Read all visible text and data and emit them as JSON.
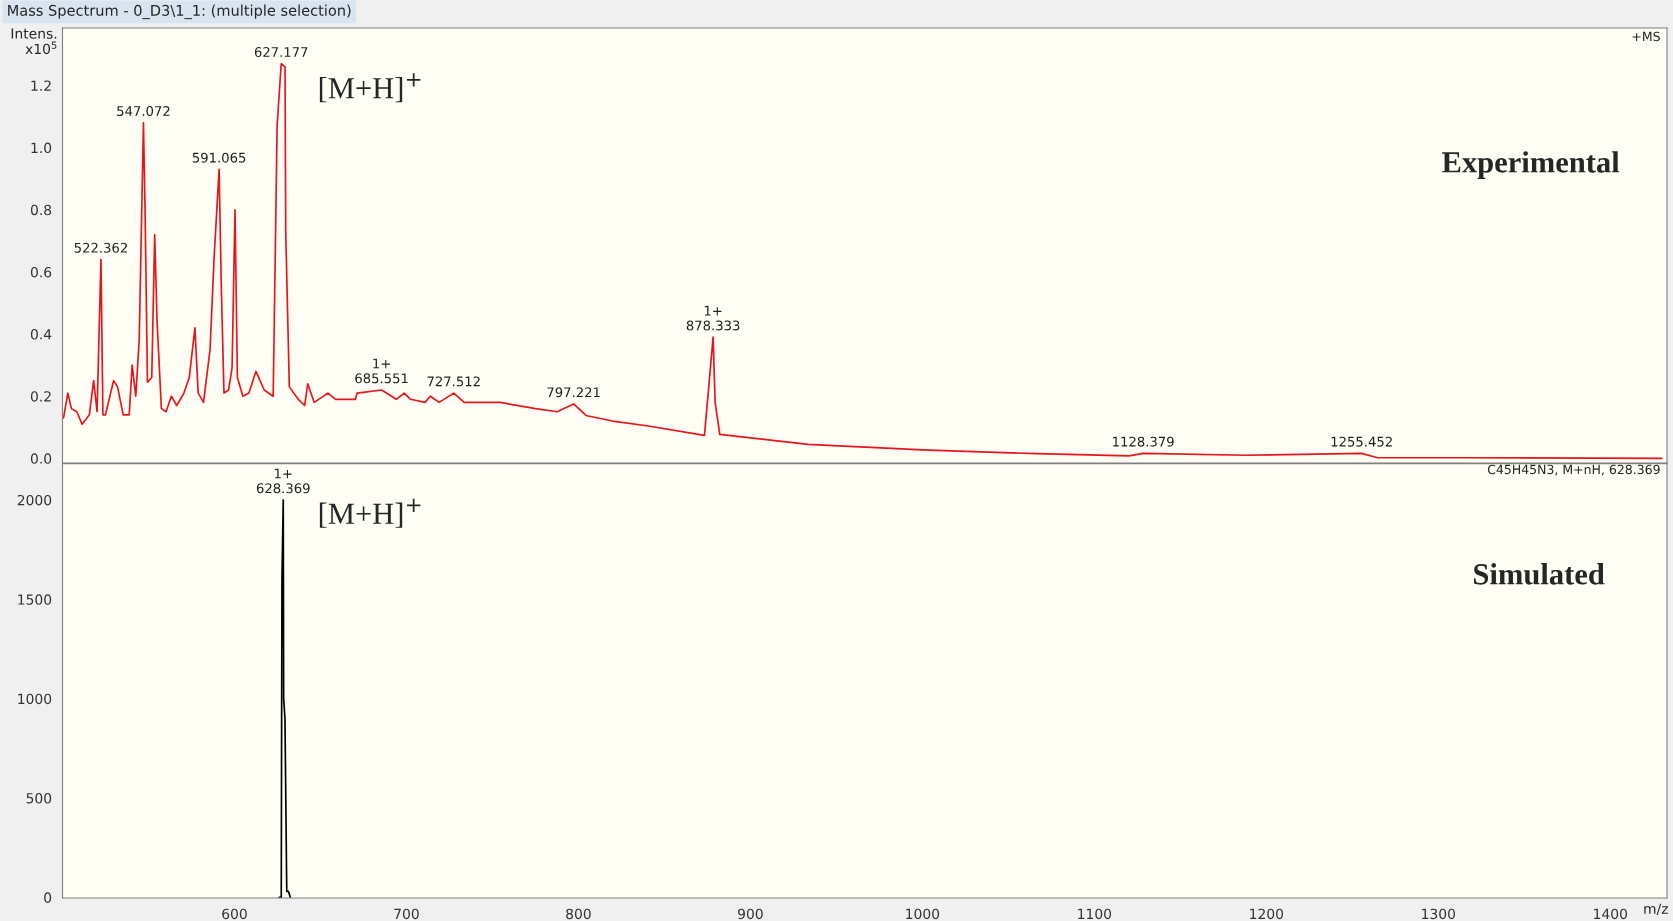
{
  "chart_data": [
    {
      "type": "line",
      "title": "Mass Spectrum - 0_D3\\1_1: (multiple selection)",
      "ylabel": "Intens.\nx10$^{5}$",
      "x": [
        500.6,
        503.1,
        505.2,
        508.3,
        511.4,
        515.6,
        518.1,
        520.1,
        522.362,
        523.5,
        525,
        529.7,
        532,
        535.3,
        538.8,
        540.5,
        542.6,
        544.6,
        547.072,
        548,
        549.4,
        551.9,
        553.6,
        555,
        557.5,
        560.2,
        563.3,
        566.4,
        570.6,
        573.7,
        577,
        578.9,
        582,
        585.8,
        588.2,
        591.065,
        592.4,
        593.9,
        596.6,
        598.6,
        600.3,
        601.7,
        604.9,
        608.4,
        612.5,
        617.3,
        622.5,
        624.8,
        627.177,
        629.4,
        629.8,
        631.9,
        637.1,
        640.8,
        642.6,
        646.4,
        654.3,
        658.8,
        670.3,
        671.3,
        685.551,
        694.1,
        698.7,
        702.4,
        710.8,
        713.9,
        719,
        727.512,
        733.6,
        754.4,
        775.1,
        787.6,
        797.221,
        804.4,
        819.9,
        839.8,
        873.3,
        878.333,
        879.5,
        882.2,
        933.4,
        1000,
        1066.8,
        1120.2,
        1128.379,
        1188,
        1255.452,
        1264.7,
        1315.5,
        1430
      ],
      "series": [
        {
          "color": "#e8141c",
          "values": [
            0.13,
            0.21,
            0.16,
            0.15,
            0.11,
            0.14,
            0.25,
            0.15,
            0.64,
            0.14,
            0.14,
            0.25,
            0.23,
            0.14,
            0.14,
            0.3,
            0.2,
            0.38,
            1.08,
            0.8,
            0.245,
            0.26,
            0.72,
            0.44,
            0.16,
            0.15,
            0.2,
            0.17,
            0.21,
            0.26,
            0.42,
            0.21,
            0.18,
            0.35,
            0.65,
            0.93,
            0.54,
            0.21,
            0.22,
            0.29,
            0.8,
            0.26,
            0.2,
            0.21,
            0.28,
            0.22,
            0.2,
            1.07,
            1.27,
            1.26,
            0.73,
            0.23,
            0.19,
            0.17,
            0.24,
            0.18,
            0.21,
            0.19,
            0.19,
            0.21,
            0.22,
            0.19,
            0.21,
            0.19,
            0.18,
            0.2,
            0.18,
            0.21,
            0.18,
            0.18,
            0.16,
            0.15,
            0.175,
            0.138,
            0.12,
            0.105,
            0.074,
            0.39,
            0.18,
            0.077,
            0.045,
            0.027,
            0.015,
            0.008,
            0.016,
            0.01,
            0.016,
            0.002,
            0.002,
            0.0
          ]
        }
      ],
      "xlim": [
        500,
        1433
      ],
      "xticks": [
        600,
        700,
        800,
        900,
        1000,
        1100,
        1200,
        1300,
        1400
      ],
      "ylim": [
        -0.015,
        1.385
      ],
      "yticks": [
        {
          "value": 0,
          "label": "0.0"
        },
        {
          "value": 0.2,
          "label": "0.2"
        },
        {
          "value": 0.4,
          "label": "0.4"
        },
        {
          "value": 0.6,
          "label": "0.6"
        },
        {
          "value": 0.8,
          "label": "0.8"
        },
        {
          "value": 1.0,
          "label": "1.0"
        },
        {
          "value": 1.2,
          "label": "1.2"
        }
      ],
      "tick_labels": "y",
      "annotations": [
        "+MS",
        "Experimental",
        "[M+H]$^{+}$",
        {
          "text": "522.362",
          "x": 522.362,
          "y": 0.64
        },
        {
          "text": "547.072",
          "x": 547.072,
          "y": 1.08
        },
        {
          "text": "591.065",
          "x": 591.065,
          "y": 0.93
        },
        {
          "text": "627.177",
          "x": 627.177,
          "y": 1.27
        },
        {
          "text": "1+\n685.551",
          "x": 685.551,
          "y": 0.22
        },
        {
          "text": "727.512",
          "x": 727.512,
          "y": 0.21
        },
        {
          "text": "797.221",
          "x": 797.221,
          "y": 0.175
        },
        {
          "text": "1+\n878.333",
          "x": 878.333,
          "y": 0.39
        },
        {
          "text": "1128.379",
          "x": 1128.379,
          "y": 0.016
        },
        {
          "text": "1255.452",
          "x": 1255.452,
          "y": 0.016
        }
      ]
    },
    {
      "type": "line",
      "xlabel": "m/z",
      "x": [
        626.0,
        627.2,
        627.6,
        628.369,
        628.6,
        629.37,
        630.4,
        631.0,
        631.4,
        632.5
      ],
      "series": [
        {
          "color": "#000000",
          "values": [
            0,
            0,
            1600,
            2000,
            1000,
            900,
            30,
            30,
            30,
            0
          ]
        }
      ],
      "xlim": [
        500,
        1433
      ],
      "xticks": [
        600,
        700,
        800,
        900,
        1000,
        1100,
        1200,
        1300,
        1400
      ],
      "ylim": [
        -3,
        2183
      ],
      "yticks": [
        0,
        500,
        1000,
        1500,
        2000
      ],
      "annotations": [
        "C45H45N3, M+nH, 628.369",
        "Simulated",
        "[M+H]$^{+}$",
        {
          "text": "1+\n628.369",
          "x": 628.369,
          "y": 2000
        }
      ]
    }
  ]
}
